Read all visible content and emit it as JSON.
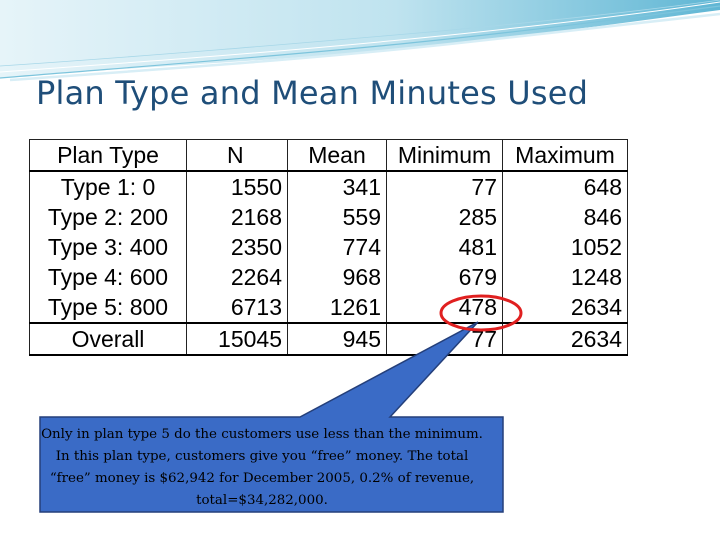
{
  "slide": {
    "title": "Plan Type and Mean Minutes Used"
  },
  "table": {
    "headers": [
      "Plan Type",
      "N",
      "Mean",
      "Minimum",
      "Maximum"
    ],
    "rows": [
      [
        "Type 1:  0",
        "1550",
        "341",
        "77",
        "648"
      ],
      [
        "Type 2: 200",
        "2168",
        "559",
        "285",
        "846"
      ],
      [
        "Type 3: 400",
        "2350",
        "774",
        "481",
        "1052"
      ],
      [
        "Type 4: 600",
        "2264",
        "968",
        "679",
        "1248"
      ],
      [
        "Type 5: 800",
        "6713",
        "1261",
        "478",
        "2634"
      ],
      [
        "Overall",
        "15045",
        "945",
        "77",
        "2634"
      ]
    ]
  },
  "callout": {
    "text": "Only in plan type 5 do the customers use less than the minimum.  In this plan type, customers give you “free” money.  The total “free” money is $62,942 for December 2005, 0.2% of revenue, total=$34,282,000."
  },
  "colors": {
    "title": "#1f4e79",
    "swoosh_dark": "#4aa8c9",
    "swoosh_light": "#cde8f2",
    "callout_fill": "#3a6bc6",
    "callout_border": "#243f7a",
    "highlight_circle": "#e02020"
  }
}
